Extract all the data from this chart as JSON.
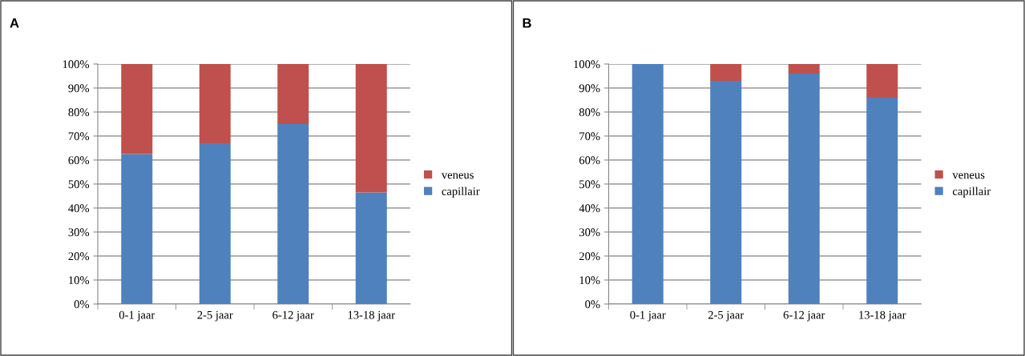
{
  "chart_data": [
    {
      "type": "bar",
      "title": "A",
      "stacked": true,
      "categories": [
        "0-1 jaar",
        "2-5 jaar",
        "6-12 jaar",
        "13-18 jaar"
      ],
      "series": [
        {
          "name": "capillair",
          "color": "#4f81bd",
          "values": [
            62.5,
            67,
            75,
            46.5
          ]
        },
        {
          "name": "veneus",
          "color": "#c0504d",
          "values": [
            37.5,
            33,
            25,
            53.5
          ]
        }
      ],
      "ylim": [
        0,
        100
      ],
      "yticks": [
        {
          "value": 0,
          "label": "0%"
        },
        {
          "value": 10,
          "label": "10%"
        },
        {
          "value": 20,
          "label": "20%"
        },
        {
          "value": 30,
          "label": "30%"
        },
        {
          "value": 40,
          "label": "40%"
        },
        {
          "value": 50,
          "label": "50%"
        },
        {
          "value": 60,
          "label": "60%"
        },
        {
          "value": 70,
          "label": "70%"
        },
        {
          "value": 80,
          "label": "80%"
        },
        {
          "value": 90,
          "label": "90%"
        },
        {
          "value": 100,
          "label": "100%"
        }
      ],
      "grid": "y",
      "legend": "right"
    },
    {
      "type": "bar",
      "title": "B",
      "stacked": true,
      "categories": [
        "0-1 jaar",
        "2-5 jaar",
        "6-12 jaar",
        "13-18 jaar"
      ],
      "series": [
        {
          "name": "capillair",
          "color": "#4f81bd",
          "values": [
            100,
            93,
            96,
            86
          ]
        },
        {
          "name": "veneus",
          "color": "#c0504d",
          "values": [
            0,
            7,
            4,
            14
          ]
        }
      ],
      "ylim": [
        0,
        100
      ],
      "yticks": [
        {
          "value": 0,
          "label": "0%"
        },
        {
          "value": 10,
          "label": "10%"
        },
        {
          "value": 20,
          "label": "20%"
        },
        {
          "value": 30,
          "label": "30%"
        },
        {
          "value": 40,
          "label": "40%"
        },
        {
          "value": 50,
          "label": "50%"
        },
        {
          "value": 60,
          "label": "60%"
        },
        {
          "value": 70,
          "label": "70%"
        },
        {
          "value": 80,
          "label": "80%"
        },
        {
          "value": 90,
          "label": "90%"
        },
        {
          "value": 100,
          "label": "100%"
        }
      ],
      "grid": "y",
      "legend": "right"
    }
  ]
}
